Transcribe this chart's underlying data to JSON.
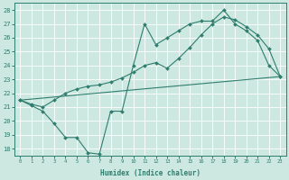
{
  "xlabel": "Humidex (Indice chaleur)",
  "bg_color": "#cde8e0",
  "line_color": "#2e7d6e",
  "grid_color": "#ffffff",
  "xlim": [
    -0.5,
    23.5
  ],
  "ylim": [
    17.5,
    28.5
  ],
  "xticks": [
    0,
    1,
    2,
    3,
    4,
    5,
    6,
    7,
    8,
    9,
    10,
    11,
    12,
    13,
    14,
    15,
    16,
    17,
    18,
    19,
    20,
    21,
    22,
    23
  ],
  "yticks": [
    18,
    19,
    20,
    21,
    22,
    23,
    24,
    25,
    26,
    27,
    28
  ],
  "series": [
    {
      "x": [
        0,
        1,
        2,
        3,
        4,
        5,
        6,
        7,
        8,
        9,
        10,
        11,
        12,
        13,
        14,
        15,
        16,
        17,
        18,
        19,
        20,
        21,
        22,
        23
      ],
      "y": [
        21.5,
        21.1,
        20.7,
        19.8,
        18.8,
        18.8,
        17.7,
        17.6,
        20.7,
        20.7,
        24.0,
        27.0,
        25.5,
        26.0,
        26.5,
        27.0,
        27.2,
        27.2,
        28.0,
        27.0,
        26.5,
        25.8,
        24.0,
        23.2
      ],
      "marker": true
    },
    {
      "x": [
        0,
        1,
        2,
        3,
        4,
        5,
        6,
        7,
        8,
        9,
        10,
        11,
        12,
        13,
        14,
        15,
        16,
        17,
        18,
        19,
        20,
        21,
        22,
        23
      ],
      "y": [
        21.5,
        21.2,
        21.0,
        21.5,
        22.0,
        22.3,
        22.5,
        22.6,
        22.8,
        23.1,
        23.5,
        24.0,
        24.2,
        23.8,
        24.5,
        25.3,
        26.2,
        27.0,
        27.5,
        27.3,
        26.8,
        26.2,
        25.2,
        23.2
      ],
      "marker": true
    },
    {
      "x": [
        0,
        23
      ],
      "y": [
        21.5,
        23.2
      ],
      "marker": false
    }
  ]
}
